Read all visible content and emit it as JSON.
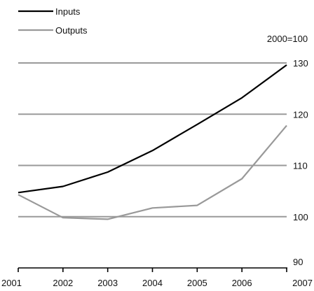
{
  "chart_data": {
    "type": "line",
    "title": "",
    "xlabel": "",
    "ylabel": "",
    "unit_label": "2000=100",
    "x": [
      "2001",
      "2002",
      "2003",
      "2004",
      "2005",
      "2006",
      "2007"
    ],
    "ylim": [
      90,
      130
    ],
    "yticks": [
      "90",
      "100",
      "110",
      "120",
      "130"
    ],
    "grid_values": [
      100,
      110,
      120,
      130
    ],
    "grid": true,
    "legend_position": "top-left",
    "series": [
      {
        "name": "Inputs",
        "color": "#000000",
        "values": [
          104.7,
          105.9,
          108.7,
          112.9,
          118.0,
          123.2,
          129.6
        ]
      },
      {
        "name": "Outputs",
        "color": "#999999",
        "values": [
          104.3,
          99.8,
          99.5,
          101.7,
          102.2,
          107.4,
          117.8
        ]
      }
    ]
  }
}
